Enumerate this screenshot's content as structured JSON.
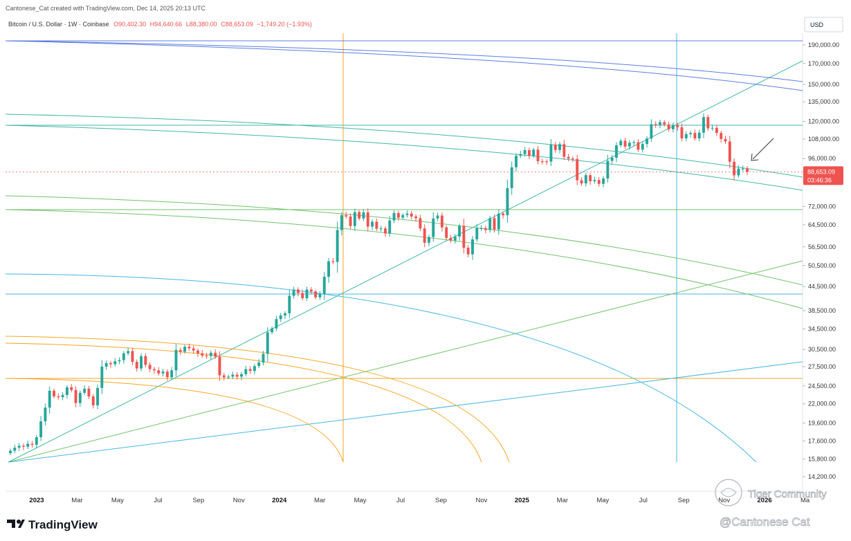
{
  "header": {
    "credit": "Cantonese_Cat created with TradingView.com, Dec 14, 2025 20:13 UTC",
    "symbol": "Bitcoin / U.S. Dollar · 1W · Coinbase",
    "ohlc_o": "O90,402.30",
    "ohlc_h": "H94,640.66",
    "ohlc_l": "L88,380.00",
    "ohlc_c": "C88,653.09",
    "change": "−1,749.20 (−1.93%)"
  },
  "currency": "USD",
  "price_tag": {
    "price": "88,653.09",
    "countdown": "03:46:36"
  },
  "footer": {
    "brand": "TradingView",
    "watermark_community": "Tiger Community",
    "watermark_author": "@Cantonese Cat"
  },
  "colors": {
    "up": "#26a69a",
    "down": "#ef5350",
    "orange": "#f5a623",
    "teal": "#3fb7a5",
    "blue": "#5b7de0",
    "sky": "#45b6e0",
    "green": "#72c26a",
    "price_tag": "#ef5350"
  },
  "chart_data": {
    "type": "candlestick",
    "scale": "log",
    "title": "Bitcoin / U.S. Dollar · 1W · Coinbase",
    "currency": "USD",
    "ylim": [
      14200,
      190000
    ],
    "y_ticks": [
      190000,
      170000,
      150000,
      135000,
      120000,
      108000,
      96000,
      72000,
      64500,
      56500,
      50500,
      44500,
      38500,
      34500,
      30500,
      27500,
      24500,
      22000,
      19600,
      17600,
      15800,
      14200
    ],
    "x_ticks": [
      "2023",
      "Mar",
      "May",
      "Jul",
      "Sep",
      "Nov",
      "2024",
      "Mar",
      "May",
      "Jul",
      "Sep",
      "Nov",
      "2025",
      "Mar",
      "May",
      "Jul",
      "Sep",
      "Nov",
      "2026",
      "Ma"
    ],
    "x_tick_bold": [
      "2023",
      "2024",
      "2025",
      "2026"
    ],
    "last_price": 88653.09,
    "closes": [
      16600,
      16900,
      17100,
      17000,
      17300,
      17200,
      18000,
      19800,
      21500,
      23800,
      23000,
      22900,
      23200,
      24300,
      23900,
      22100,
      23500,
      24100,
      23000,
      21800,
      24200,
      27500,
      28100,
      27900,
      28400,
      28600,
      29800,
      30200,
      28300,
      27200,
      29300,
      27800,
      27100,
      26900,
      26400,
      26700,
      25800,
      26900,
      30400,
      30100,
      31000,
      30700,
      30300,
      29800,
      29400,
      29300,
      29900,
      29200,
      26100,
      25800,
      25900,
      26200,
      25900,
      26300,
      27100,
      26800,
      27600,
      28200,
      29700,
      33800,
      34600,
      36600,
      37400,
      37900,
      42100,
      43700,
      42800,
      41500,
      43700,
      43200,
      41700,
      42500,
      47200,
      51800,
      51600,
      62500,
      68300,
      67800,
      64000,
      69600,
      67000,
      69500,
      63800,
      65700,
      63000,
      63100,
      61200,
      66200,
      69200,
      67300,
      68400,
      69000,
      67800,
      67100,
      63100,
      57900,
      59900,
      67000,
      68200,
      63500,
      59600,
      58700,
      60100,
      64100,
      56200,
      54000,
      59100,
      63200,
      63200,
      62500,
      67100,
      62700,
      69000,
      68300,
      80400,
      91100,
      97600,
      98600,
      101000,
      97500,
      101300,
      94500,
      94400,
      94300,
      104400,
      101100,
      104700,
      97000,
      96000,
      95800,
      84300,
      82700,
      86900,
      83800,
      84400,
      82500,
      85200,
      94700,
      96500,
      104000,
      106800,
      103200,
      105600,
      105900,
      101300,
      104800,
      108300,
      118000,
      117500,
      119500,
      117800,
      114500,
      117400,
      115900,
      108400,
      111200,
      112000,
      108400,
      112200,
      123200,
      115100,
      115500,
      112000,
      108000,
      106400,
      94200,
      86800,
      90400,
      90400,
      88653
    ]
  }
}
